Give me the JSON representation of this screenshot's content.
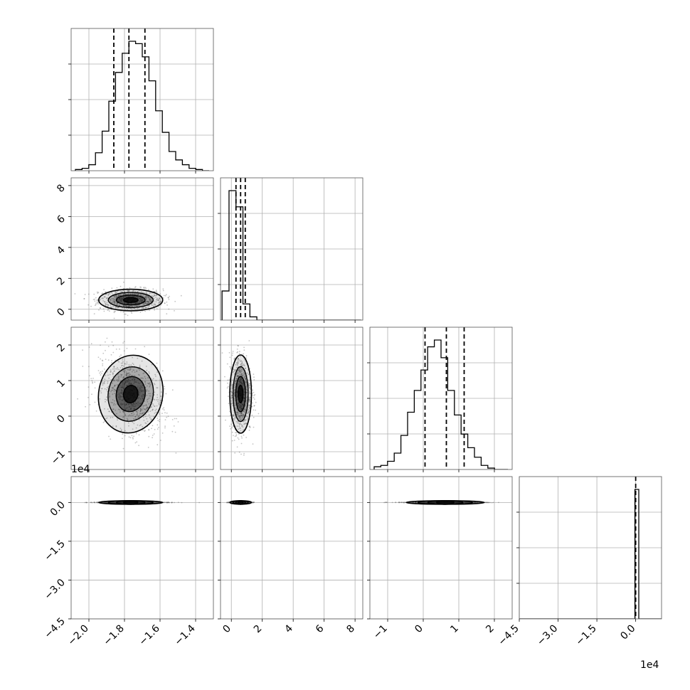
{
  "chart_data": {
    "type": "corner",
    "dim": 4,
    "grid": true,
    "axes": [
      {
        "range": [
          -2.1,
          -1.3
        ],
        "ticks": [
          -2.0,
          -1.8,
          -1.6,
          -1.4
        ],
        "tick_labels": [
          "−2.0",
          "−1.8",
          "−1.6",
          "−1.4"
        ],
        "quantiles": [
          -1.86,
          -1.775,
          -1.685
        ],
        "hist_counts": [
          1,
          2,
          5,
          15,
          33,
          58,
          82,
          98,
          108,
          106,
          95,
          75,
          50,
          32,
          16,
          9,
          5,
          2,
          1,
          0
        ],
        "mean": -1.765,
        "sd": 0.09
      },
      {
        "range": [
          -0.7,
          8.5
        ],
        "ticks": [
          0,
          2,
          4,
          6,
          8
        ],
        "tick_labels": [
          "0",
          "2",
          "4",
          "6",
          "8"
        ],
        "quantiles": [
          0.3,
          0.6,
          0.9
        ],
        "hist_counts": [
          18,
          80,
          70,
          10,
          2,
          0,
          0,
          0,
          0,
          0,
          0,
          0,
          0,
          0,
          0,
          0,
          0,
          0,
          0,
          0
        ],
        "mean": 0.6,
        "sd": 0.35
      },
      {
        "range": [
          -1.5,
          2.5
        ],
        "ticks": [
          -1,
          0,
          1,
          2
        ],
        "tick_labels": [
          "−1",
          "0",
          "1",
          "2"
        ],
        "quantiles": [
          0.05,
          0.65,
          1.15
        ],
        "hist_counts": [
          2,
          3,
          6,
          12,
          25,
          42,
          58,
          73,
          90,
          95,
          82,
          58,
          40,
          26,
          16,
          9,
          3,
          1,
          0,
          0
        ],
        "mean": 0.62,
        "sd": 0.55
      },
      {
        "range": [
          -4.5,
          1.0
        ],
        "ticks": [
          -4.5,
          -3.0,
          -1.5,
          0.0
        ],
        "tick_labels": [
          "−4.5",
          "−3.0",
          "−1.5",
          "0.0"
        ],
        "offset_label": "1e4",
        "quantiles": [
          0.0
        ],
        "hist_counts": [
          0,
          0,
          0,
          0,
          0,
          0,
          0,
          0,
          0,
          0,
          0,
          0,
          0,
          0,
          0,
          0,
          0,
          0,
          1,
          0
        ],
        "mean": 0.0,
        "sd": 0.02
      }
    ],
    "offset_labels": [
      {
        "row": 3,
        "col": 0,
        "text": "1e4"
      },
      {
        "row": 3,
        "col": 3,
        "text": "1e4"
      }
    ]
  },
  "colors": {
    "line": "#000000",
    "grid": "#b0b0b0",
    "frame": "#000000",
    "fill": "#000000"
  }
}
